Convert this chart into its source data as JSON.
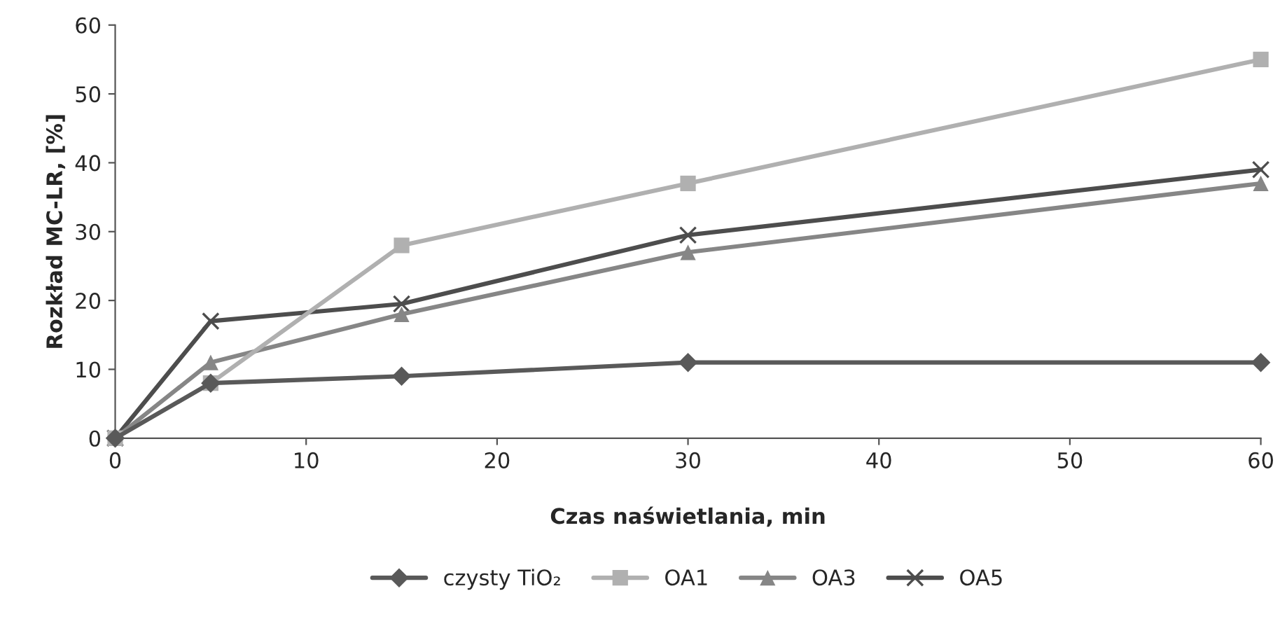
{
  "chart_data": {
    "type": "line",
    "xlabel": "Czas naświetlania, min",
    "ylabel": "Rozkład MC-LR, [%]",
    "x": [
      0,
      5,
      15,
      30,
      60
    ],
    "series": [
      {
        "name": "czysty TiO₂",
        "color": "#595959",
        "marker": "diamond",
        "values": [
          0,
          8,
          9,
          11,
          11
        ]
      },
      {
        "name": "OA1",
        "color": "#b0b0b0",
        "marker": "square",
        "values": [
          0,
          8,
          28,
          37,
          55
        ]
      },
      {
        "name": "OA3",
        "color": "#868686",
        "marker": "triangle",
        "values": [
          0,
          11,
          18,
          27,
          37
        ]
      },
      {
        "name": "OA5",
        "color": "#4d4d4d",
        "marker": "cross",
        "values": [
          0,
          17,
          19.5,
          29.5,
          39
        ]
      }
    ],
    "xlim": [
      0,
      60
    ],
    "xticks": [
      0,
      10,
      20,
      30,
      40,
      50,
      60
    ],
    "ylim": [
      0,
      60
    ],
    "yticks": [
      0,
      10,
      20,
      30,
      40,
      50,
      60
    ],
    "grid": false,
    "legend": "bottom"
  }
}
